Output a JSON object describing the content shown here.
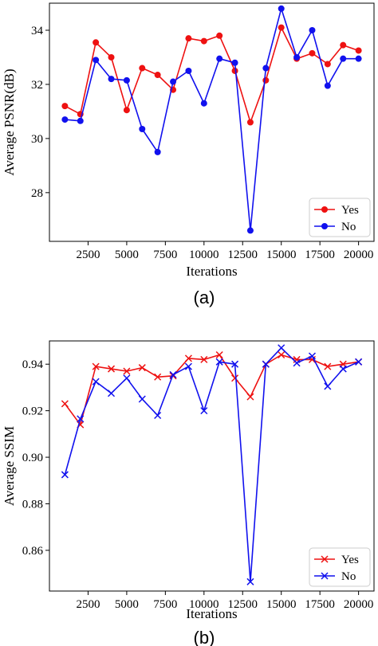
{
  "chart_data": [
    {
      "type": "line",
      "caption": "(a)",
      "xlabel": "Iterations",
      "ylabel": "Average PSNR(dB)",
      "xlim": [
        0,
        21000
      ],
      "ylim": [
        26.2,
        35.0
      ],
      "xticks": [
        2500,
        5000,
        7500,
        10000,
        12500,
        15000,
        17500,
        20000
      ],
      "yticks": [
        28,
        30,
        32,
        34
      ],
      "marker": "circle",
      "legend_position": "bottom-right",
      "x": [
        1000,
        2000,
        3000,
        4000,
        5000,
        6000,
        7000,
        8000,
        9000,
        10000,
        11000,
        12000,
        13000,
        14000,
        15000,
        16000,
        17000,
        18000,
        19000,
        20000
      ],
      "series": [
        {
          "name": "Yes",
          "color": "#ee1111",
          "values": [
            31.2,
            30.9,
            33.55,
            33.0,
            31.05,
            32.6,
            32.35,
            31.8,
            33.7,
            33.6,
            33.8,
            32.5,
            30.6,
            32.15,
            34.1,
            32.95,
            33.15,
            32.75,
            33.45,
            33.25
          ]
        },
        {
          "name": "No",
          "color": "#1111ee",
          "values": [
            30.7,
            30.65,
            32.9,
            32.2,
            32.15,
            30.35,
            29.5,
            32.1,
            32.5,
            31.3,
            32.95,
            32.8,
            26.6,
            32.6,
            34.8,
            33.0,
            34.0,
            31.95,
            32.95,
            32.95
          ]
        }
      ]
    },
    {
      "type": "line",
      "caption": "(b)",
      "xlabel": "Iterations",
      "ylabel": "Average SSIM",
      "xlim": [
        0,
        21000
      ],
      "ylim": [
        0.8425,
        0.95
      ],
      "xticks": [
        2500,
        5000,
        7500,
        10000,
        12500,
        15000,
        17500,
        20000
      ],
      "yticks": [
        0.86,
        0.88,
        0.9,
        0.92,
        0.94
      ],
      "marker": "x",
      "legend_position": "bottom-right",
      "x": [
        1000,
        2000,
        3000,
        4000,
        5000,
        6000,
        7000,
        8000,
        9000,
        10000,
        11000,
        12000,
        13000,
        14000,
        15000,
        16000,
        17000,
        18000,
        19000,
        20000
      ],
      "series": [
        {
          "name": "Yes",
          "color": "#ee1111",
          "values": [
            0.923,
            0.914,
            0.939,
            0.938,
            0.937,
            0.9385,
            0.9345,
            0.935,
            0.9425,
            0.942,
            0.944,
            0.934,
            0.926,
            0.94,
            0.944,
            0.942,
            0.942,
            0.939,
            0.94,
            0.941
          ]
        },
        {
          "name": "No",
          "color": "#1111ee",
          "values": [
            0.8925,
            0.9165,
            0.9325,
            0.9275,
            0.934,
            0.925,
            0.918,
            0.9355,
            0.939,
            0.92,
            0.941,
            0.94,
            0.8465,
            0.94,
            0.947,
            0.9405,
            0.9435,
            0.9305,
            0.938,
            0.941
          ]
        }
      ]
    }
  ]
}
